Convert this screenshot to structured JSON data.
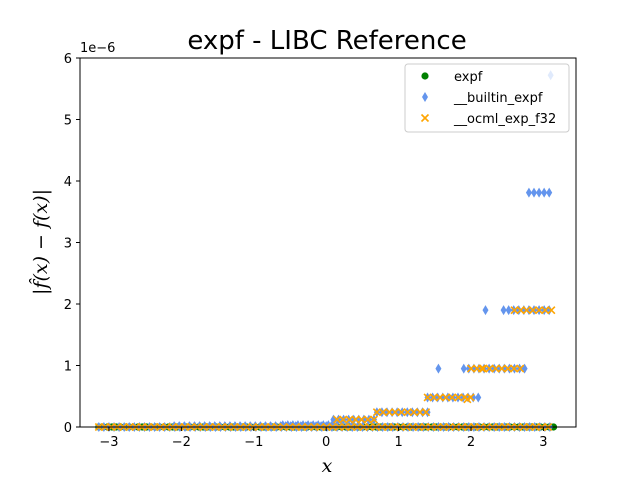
{
  "chart_data": {
    "type": "scatter",
    "title": "expf - LIBC Reference",
    "xlabel": "x",
    "ylabel": "|f̂(x) − f(x)|",
    "y_offset_label": "1e−6",
    "xlim": [
      -3.4,
      3.45
    ],
    "ylim": [
      0,
      6
    ],
    "xticks": [
      -3,
      -2,
      -1,
      0,
      1,
      2,
      3
    ],
    "yticks": [
      0,
      1,
      2,
      3,
      4,
      5,
      6
    ],
    "grid": false,
    "legend_position": "top-right",
    "series": [
      {
        "name": "expf",
        "marker": "circle",
        "color": "#008000",
        "segments": [
          {
            "x_start": -3.14,
            "x_end": 0.15,
            "y": 0.0
          },
          {
            "x_start": 0.15,
            "x_end": 0.7,
            "y": 0.0
          },
          {
            "x_start": 0.7,
            "x_end": 1.4,
            "y": 0.0
          },
          {
            "x_start": 1.4,
            "x_end": 3.14,
            "y": 0.0
          }
        ]
      },
      {
        "name": "__builtin_expf",
        "marker": "diamond",
        "color": "#6495ED",
        "segments": [
          {
            "x_start": -3.14,
            "x_end": 3.14,
            "y": 0.0
          },
          {
            "x_start": -2.1,
            "x_end": 0.35,
            "y": 0.015
          },
          {
            "x_start": -0.6,
            "x_end": 0.1,
            "y": 0.03
          },
          {
            "x_start": 0.1,
            "x_end": 0.7,
            "y": 0.12
          },
          {
            "x_start": 0.7,
            "x_end": 1.4,
            "y": 0.24
          },
          {
            "x_start": 1.4,
            "x_end": 2.1,
            "y": 0.48
          },
          {
            "x_start": 1.9,
            "x_end": 2.8,
            "y": 0.95
          },
          {
            "x_start": 2.45,
            "x_end": 3.14,
            "y": 1.9
          },
          {
            "x_start": 2.8,
            "x_end": 3.14,
            "y": 3.81
          }
        ],
        "isolated": [
          {
            "x": 1.55,
            "y": 0.95
          },
          {
            "x": 2.2,
            "y": 1.9
          },
          {
            "x": 3.1,
            "y": 5.72
          }
        ]
      },
      {
        "name": "__ocml_exp_f32",
        "marker": "x",
        "color": "#FFA500",
        "segments": [
          {
            "x_start": -3.14,
            "x_end": 3.14,
            "y": 0.0
          },
          {
            "x_start": 0.15,
            "x_end": 0.7,
            "y": 0.12
          },
          {
            "x_start": 0.7,
            "x_end": 1.4,
            "y": 0.24
          },
          {
            "x_start": 1.4,
            "x_end": 2.0,
            "y": 0.48
          },
          {
            "x_start": 2.0,
            "x_end": 2.7,
            "y": 0.95
          },
          {
            "x_start": 2.6,
            "x_end": 3.14,
            "y": 1.9
          }
        ],
        "isolated": [
          {
            "x": 1.95,
            "y": 0.45
          },
          {
            "x": 2.15,
            "y": 0.95
          }
        ]
      }
    ]
  }
}
